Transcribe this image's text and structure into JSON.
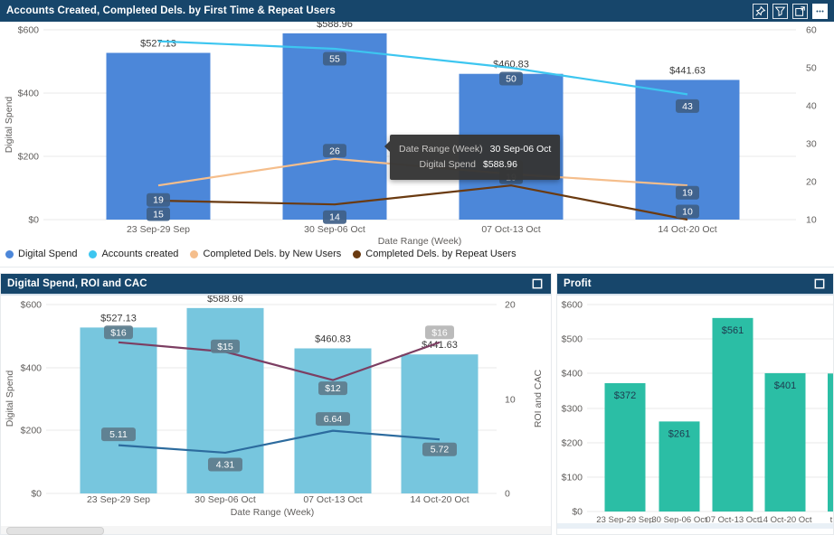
{
  "colors": {
    "header_bg": "#17466B",
    "bar_blue": "#4C87D9",
    "line_cyan": "#3DC6F0",
    "line_peach": "#F5BE8C",
    "line_brown": "#6A3A10",
    "chip_dark_blue": "#3F5F88",
    "bar_light_blue": "#77C6DE",
    "line_roi": "#7C3E62",
    "line_cac": "#2C6B9E",
    "chip_slate": "#5E7C8C",
    "chip_highlight": "#B5B5B5",
    "bar_teal": "#2BBEA5",
    "axis_text": "#605E5C",
    "gridline": "#e9e9e9"
  },
  "panels": {
    "top": {
      "title": "Accounts Created, Completed Dels. by First Time & Repeat Users",
      "icons": [
        "pin-icon",
        "filter-icon",
        "popout-icon",
        "more-options-icon"
      ],
      "legend": [
        {
          "label": "Digital Spend",
          "color": "#4C87D9"
        },
        {
          "label": "Accounts created",
          "color": "#3DC6F0"
        },
        {
          "label": "Completed Dels. by New Users",
          "color": "#F5BE8C"
        },
        {
          "label": "Completed Dels. by Repeat Users",
          "color": "#6A3A10"
        }
      ],
      "tooltip": {
        "rows": [
          {
            "label": "Date Range (Week)",
            "value": "30 Sep-06 Oct"
          },
          {
            "label": "Digital Spend",
            "value": "$588.96"
          }
        ]
      }
    },
    "bottom_left": {
      "title": "Digital Spend, ROI and CAC",
      "icons": [
        "focus-mode-icon"
      ]
    },
    "bottom_right": {
      "title": "Profit",
      "icons": [
        "focus-mode-icon"
      ]
    }
  },
  "chart_data": [
    {
      "id": "accounts-created-combo",
      "type": "bar+line",
      "title": "Accounts Created, Completed Dels. by First Time & Repeat Users",
      "categories": [
        "23 Sep-29 Sep",
        "30 Sep-06 Oct",
        "07 Oct-13 Oct",
        "14 Oct-20 Oct"
      ],
      "xlabel": "Date Range (Week)",
      "left_axis": {
        "label": "Digital Spend",
        "min": 0,
        "max": 600,
        "ticks": [
          "$600",
          "$400",
          "$200",
          "$0"
        ]
      },
      "right_axis": {
        "min": 10,
        "max": 60,
        "ticks": [
          "60",
          "50",
          "40",
          "30",
          "20",
          "10"
        ]
      },
      "bars": {
        "name": "Digital Spend",
        "color": "#4C87D9",
        "values": [
          527.13,
          588.96,
          460.83,
          441.63
        ],
        "labels": [
          "$527.13",
          "$588.96",
          "$460.83",
          "$441.63"
        ]
      },
      "lines": [
        {
          "name": "Accounts created",
          "color": "#3DC6F0",
          "values": [
            57,
            55,
            50,
            43
          ],
          "labels": [
            "",
            "55",
            "50",
            "43"
          ]
        },
        {
          "name": "Completed Dels. by New Users",
          "color": "#F5BE8C",
          "values": [
            19,
            26,
            22,
            19
          ],
          "labels": [
            "19",
            "26",
            "22",
            "19"
          ]
        },
        {
          "name": "Completed Dels. by Repeat Users",
          "color": "#6A3A10",
          "values": [
            15,
            14,
            19,
            10
          ],
          "labels": [
            "15",
            "14",
            "19",
            "10"
          ]
        }
      ],
      "legend_position": "bottom"
    },
    {
      "id": "spend-roi-cac-combo",
      "type": "bar+line",
      "title": "Digital Spend, ROI and CAC",
      "categories": [
        "23 Sep-29 Sep",
        "30 Sep-06 Oct",
        "07 Oct-13 Oct",
        "14 Oct-20 Oct"
      ],
      "xlabel": "Date Range (Week)",
      "left_axis": {
        "label": "Digital Spend",
        "min": 0,
        "max": 600,
        "ticks": [
          "$600",
          "$400",
          "$200",
          "$0"
        ]
      },
      "right_axis": {
        "label": "ROI and CAC",
        "min": 0,
        "max": 20,
        "ticks": [
          "20",
          "10",
          "0"
        ]
      },
      "bars": {
        "name": "Digital Spend",
        "color": "#77C6DE",
        "values": [
          527.13,
          588.96,
          460.83,
          441.63
        ],
        "labels": [
          "$527.13",
          "$588.96",
          "$460.83",
          "$441.63"
        ]
      },
      "lines": [
        {
          "name": "ROI",
          "color": "#7C3E62",
          "values": [
            16,
            15,
            12,
            16
          ],
          "labels": [
            "$16",
            "$15",
            "$12",
            "$16"
          ],
          "highlight_last": true
        },
        {
          "name": "CAC",
          "color": "#2C6B9E",
          "values": [
            5.11,
            4.31,
            6.64,
            5.72
          ],
          "labels": [
            "5.11",
            "4.31",
            "6.64",
            "5.72"
          ]
        }
      ]
    },
    {
      "id": "profit-bar",
      "type": "bar",
      "title": "Profit",
      "categories": [
        "23 Sep-29 Sep",
        "30 Sep-06 Oct",
        "07 Oct-13 Oct",
        "14 Oct-20 Oct"
      ],
      "values": [
        372,
        261,
        561,
        401
      ],
      "labels": [
        "$372",
        "$261",
        "$561",
        "$401"
      ],
      "ylim": [
        0,
        600
      ],
      "y_ticks": [
        "$600",
        "$500",
        "$400",
        "$300",
        "$200",
        "$100",
        "$0"
      ],
      "partial_next_bar": {
        "visible_label": "t",
        "approx_value": 400
      }
    }
  ]
}
